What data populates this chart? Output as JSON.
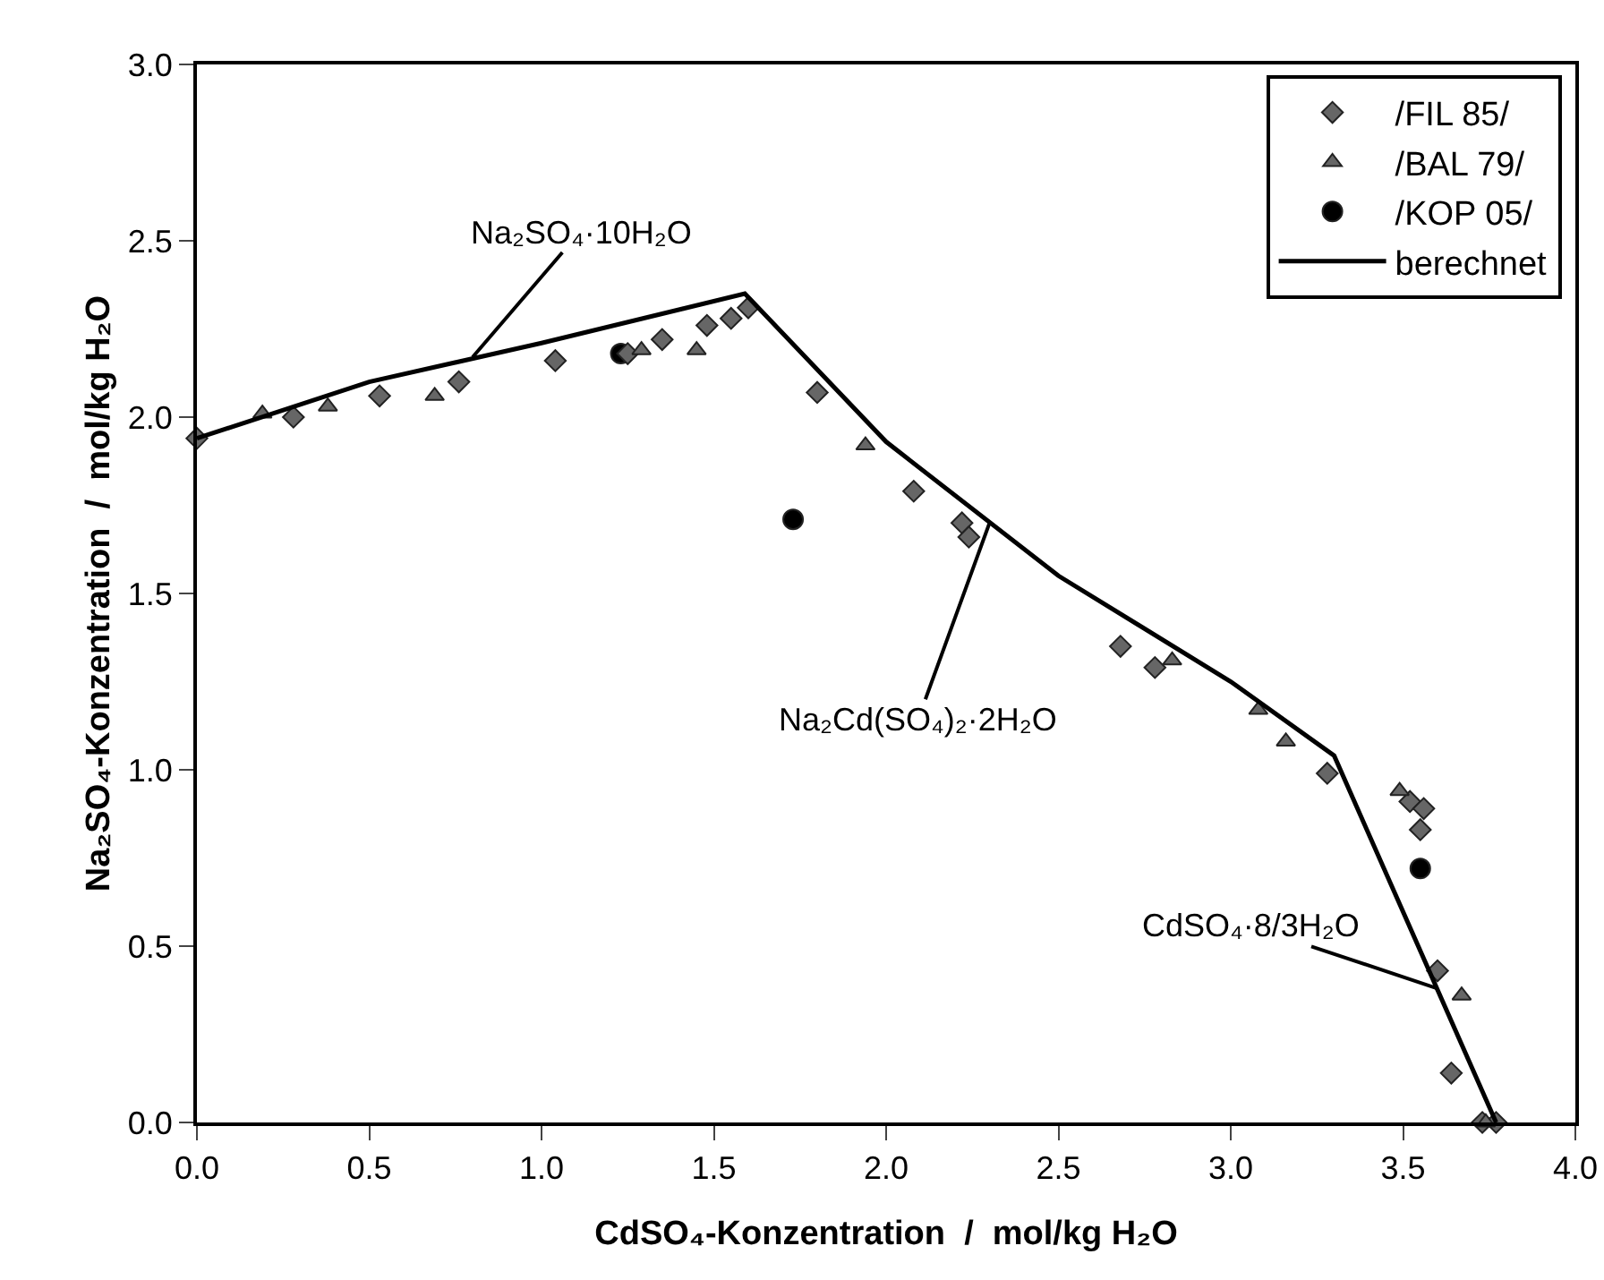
{
  "chart_data": {
    "type": "scatter",
    "xlabel": "CdSO₄-Konzentration  /  mol/kg H₂O",
    "ylabel": "Na₂SO₄-Konzentration  /  mol/kg H₂O",
    "xlim": [
      0,
      4
    ],
    "xticks": [
      {
        "value": 0,
        "label": "0.0"
      },
      {
        "value": 0.5,
        "label": "0.5"
      },
      {
        "value": 1,
        "label": "1.0"
      },
      {
        "value": 1.5,
        "label": "1.5"
      },
      {
        "value": 2,
        "label": "2.0"
      },
      {
        "value": 2.5,
        "label": "2.5"
      },
      {
        "value": 3,
        "label": "3.0"
      },
      {
        "value": 3.5,
        "label": "3.5"
      },
      {
        "value": 4,
        "label": "4.0"
      }
    ],
    "ylim": [
      0,
      3
    ],
    "yticks": [
      {
        "value": 0,
        "label": "0.0"
      },
      {
        "value": 0.5,
        "label": "0.5"
      },
      {
        "value": 1,
        "label": "1.0"
      },
      {
        "value": 1.5,
        "label": "1.5"
      },
      {
        "value": 2,
        "label": "2.0"
      },
      {
        "value": 2.5,
        "label": "2.5"
      },
      {
        "value": 3,
        "label": "3.0"
      }
    ],
    "grid": false,
    "legend": "top right",
    "series": [
      {
        "name": "/FIL 85/",
        "marker": "diamond",
        "color": "#666666",
        "x": [
          0,
          0.28,
          0.53,
          0.76,
          1.04,
          1.25,
          1.35,
          1.48,
          1.55,
          1.6,
          1.8,
          2.08,
          2.22,
          2.24,
          2.68,
          2.78,
          3.28,
          3.52,
          3.56,
          3.55,
          3.6,
          3.64,
          3.73,
          3.77
        ],
        "values": [
          1.94,
          2.0,
          2.06,
          2.1,
          2.16,
          2.18,
          2.22,
          2.26,
          2.28,
          2.31,
          2.07,
          1.79,
          1.7,
          1.66,
          1.35,
          1.29,
          0.99,
          0.91,
          0.89,
          0.83,
          0.43,
          0.14,
          0,
          0
        ]
      },
      {
        "name": "/BAL 79/",
        "marker": "triangle",
        "color": "#666666",
        "x": [
          0.19,
          0.38,
          0.69,
          1.29,
          1.45,
          1.94,
          2.83,
          3.08,
          3.16,
          3.49,
          3.67,
          3.74
        ],
        "values": [
          2.01,
          2.03,
          2.06,
          2.19,
          2.19,
          1.92,
          1.31,
          1.17,
          1.08,
          0.94,
          0.36,
          0
        ]
      },
      {
        "name": "/KOP 05/",
        "marker": "circle",
        "color": "#000000",
        "x": [
          1.23,
          1.73,
          3.55
        ],
        "values": [
          2.18,
          1.71,
          0.72
        ]
      },
      {
        "name": "berechnet",
        "type": "line",
        "marker": "none",
        "line_style": "solid",
        "color": "#000000",
        "x": [
          0,
          0.5,
          1.0,
          1.59,
          2.0,
          2.5,
          3.0,
          3.3,
          3.77
        ],
        "values": [
          1.94,
          2.1,
          2.21,
          2.35,
          1.93,
          1.55,
          1.25,
          1.04,
          0
        ]
      }
    ],
    "annotations": [
      {
        "text": "Na₂SO₄·10H₂O",
        "x": 0.8,
        "y": 2.17
      },
      {
        "text": "Na₂Cd(SO₄)₂·2H₂O",
        "x": 2.3,
        "y": 1.7
      },
      {
        "text": "CdSO₄·8/3H₂O",
        "x": 3.6,
        "y": 0.38
      }
    ]
  }
}
